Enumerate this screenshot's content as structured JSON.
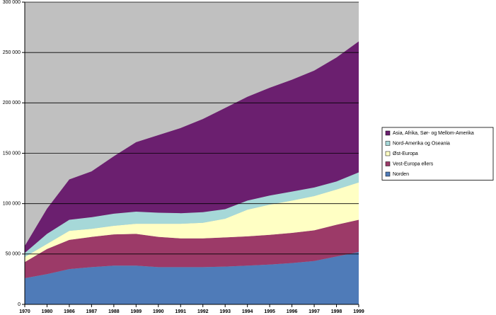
{
  "chart_data": {
    "type": "stacked_area",
    "categories": [
      "1970",
      "1980",
      "1986",
      "1987",
      "1988",
      "1989",
      "1990",
      "1991",
      "1992",
      "1993",
      "1994",
      "1995",
      "1996",
      "1997",
      "1998",
      "1999"
    ],
    "series": [
      {
        "name": "Norden",
        "color": "#4f7bb8",
        "values": [
          26000,
          30000,
          35000,
          37000,
          38500,
          38500,
          37000,
          37000,
          37000,
          37500,
          38500,
          39500,
          41000,
          43000,
          47500,
          52000
        ]
      },
      {
        "name": "Vest-Europa ellers",
        "color": "#9c3a68",
        "values": [
          16000,
          25000,
          29000,
          30000,
          31000,
          31500,
          30000,
          28500,
          28500,
          29000,
          29000,
          29500,
          30000,
          30500,
          31500,
          32000
        ]
      },
      {
        "name": "Øst-Europa",
        "color": "#ffffc4",
        "values": [
          5000,
          5000,
          9000,
          8000,
          8500,
          10000,
          13000,
          14500,
          15500,
          18500,
          26500,
          30000,
          32000,
          34000,
          35000,
          37000
        ]
      },
      {
        "name": "Nord-Amerika og Oseania",
        "color": "#a6d8d8",
        "values": [
          4000,
          10000,
          11000,
          11500,
          12000,
          12000,
          11000,
          10500,
          10500,
          9500,
          9000,
          9000,
          9000,
          8500,
          8000,
          10000
        ]
      },
      {
        "name": "Asia, Afrika, Sør- og Mellom-Amerika",
        "color": "#6b1f6f",
        "values": [
          7000,
          25000,
          40000,
          45500,
          57000,
          69000,
          77000,
          84500,
          92500,
          100500,
          103000,
          107000,
          111000,
          116000,
          123000,
          130000
        ]
      }
    ],
    "ylim": [
      0,
      300000
    ],
    "yticks": [
      0,
      {
        "value": 50000,
        "label": "50 000"
      },
      {
        "value": 100000,
        "label": "100 000"
      },
      {
        "value": 150000,
        "label": "150 000"
      },
      {
        "value": 200000,
        "label": "200 000"
      },
      {
        "value": 250000,
        "label": "250 000"
      },
      {
        "value": 300000,
        "label": "300 000"
      }
    ],
    "grid": true,
    "legend": "right"
  }
}
